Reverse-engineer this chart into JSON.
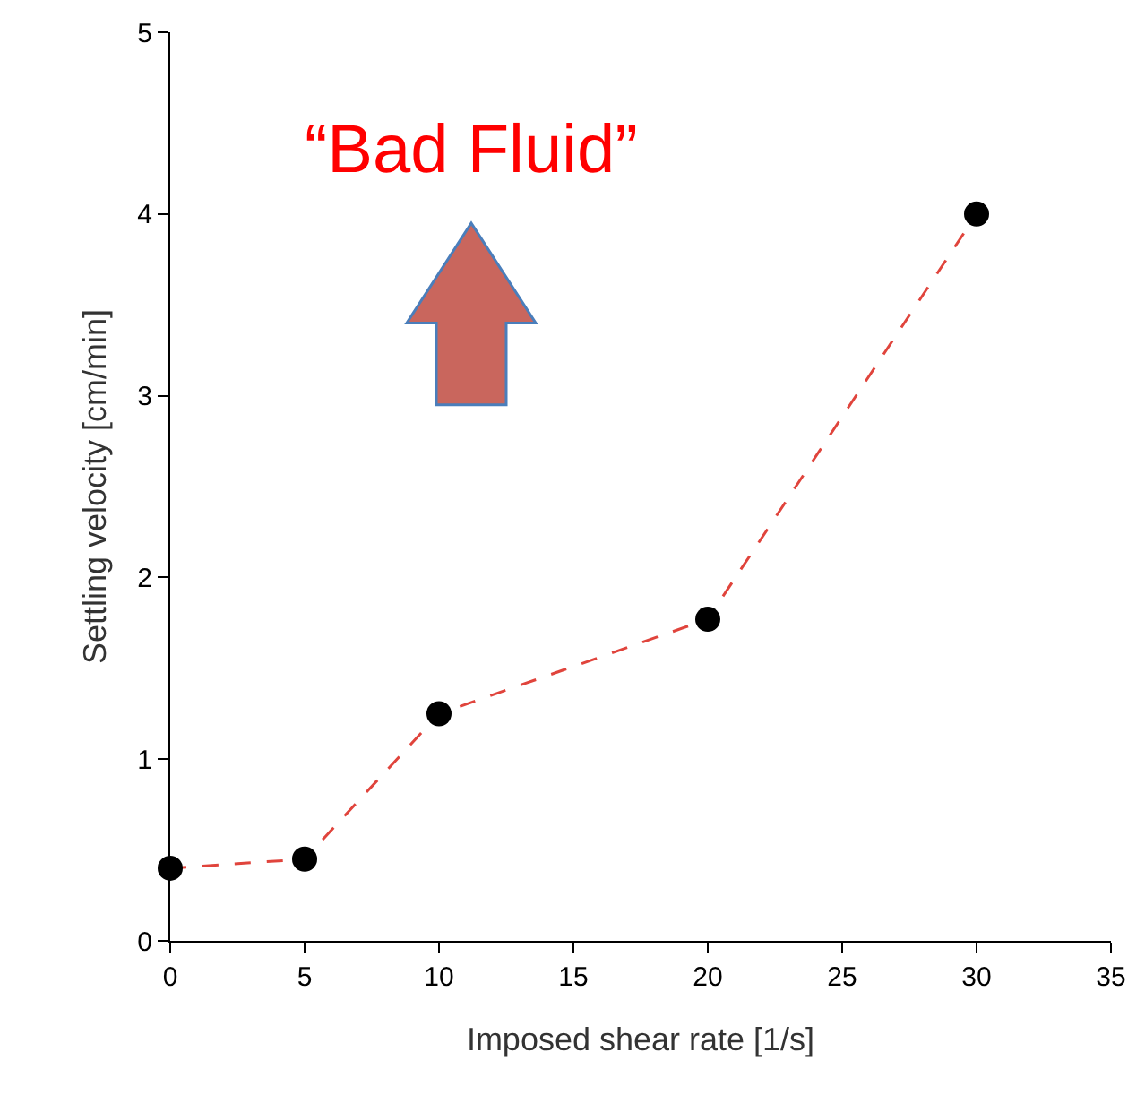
{
  "chart_data": {
    "type": "line",
    "xlabel": "Imposed shear rate [1/s]",
    "ylabel": "Settling velocity [cm/min]",
    "x": [
      0,
      5,
      10,
      20,
      30
    ],
    "series": [
      {
        "color": "#e0443c",
        "values": [
          0.4,
          0.45,
          1.25,
          1.77,
          4.0
        ],
        "colors": [
          "#000000",
          "#000000",
          "#000000",
          "#000000",
          "#000000"
        ]
      }
    ],
    "xlim": [
      0,
      35
    ],
    "xticks": [
      0,
      5,
      10,
      15,
      20,
      25,
      30,
      35
    ],
    "ylim": [
      0,
      5
    ],
    "yticks": [
      0,
      1,
      2,
      3,
      4,
      5
    ],
    "marker": "circle",
    "line_style": "dashed",
    "annotations": [
      "“Bad Fluid”"
    ]
  }
}
